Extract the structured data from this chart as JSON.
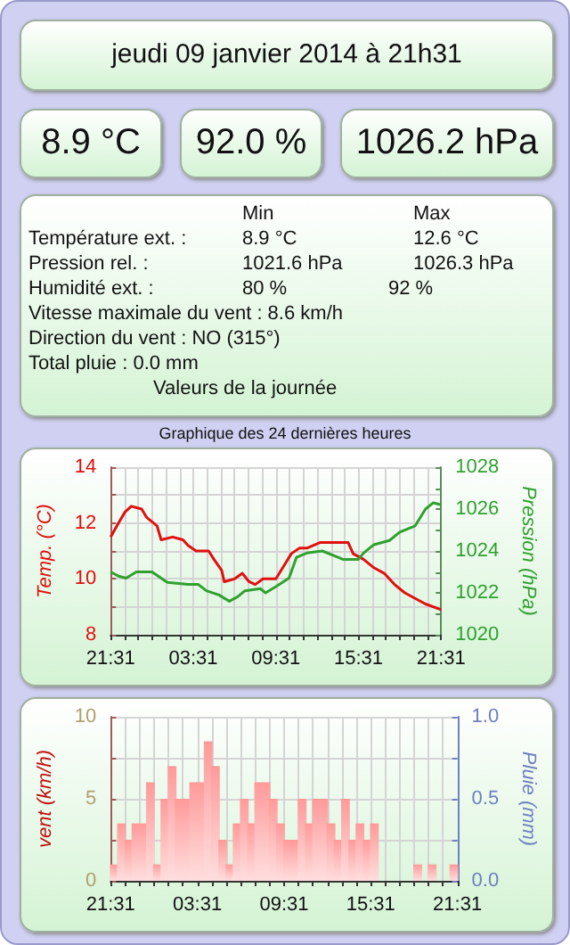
{
  "chart_data": [
    {
      "type": "other",
      "title": "jeudi 09 janvier 2014 à 21h31",
      "annotations": [
        "8.9 °C",
        "92.0 %",
        "1026.2 hPa",
        "Min",
        "Max",
        "Température ext. :",
        "8.9 °C",
        "12.6 °C",
        "Pression rel. :",
        "1021.6 hPa",
        "1026.3 hPa",
        "Humidité ext. :",
        "80 %",
        "92 %",
        "Vitesse maximale du vent : 8.6 km/h",
        "Direction du vent : NO (315°)",
        "Total pluie : 0.0 mm",
        "Valeurs de la journée"
      ]
    },
    {
      "type": "line",
      "title": "Graphique des 24 dernières heures",
      "ylabel": "Temp. (°C)",
      "y2label": "Pression (hPa)",
      "series": [
        {
          "color": "#e01010",
          "x": [
            "2014-01-08T21:31",
            "2014-01-08T22:05",
            "2014-01-08T22:34",
            "2014-01-08T23:01",
            "2014-01-08T23:46",
            "2014-01-09T00:08",
            "2014-01-09T00:53",
            "2014-01-09T01:11",
            "2014-01-09T02:01",
            "2014-01-09T02:46",
            "2014-01-09T03:08",
            "2014-01-09T03:43",
            "2014-01-09T04:38",
            "2014-01-09T05:01",
            "2014-01-09T05:35",
            "2014-01-09T05:46",
            "2014-01-09T06:31",
            "2014-01-09T07:05",
            "2014-01-09T07:34",
            "2014-01-09T08:01",
            "2014-01-09T08:35",
            "2014-01-09T09:31",
            "2014-01-09T10:16",
            "2014-01-09T10:38",
            "2014-01-09T11:13",
            "2014-01-09T11:46",
            "2014-01-09T12:43",
            "2014-01-09T14:46",
            "2014-01-09T15:08",
            "2014-01-09T15:53",
            "2014-01-09T16:38",
            "2014-01-09T17:23",
            "2014-01-09T18:08",
            "2014-01-09T18:53",
            "2014-01-09T19:38",
            "2014-01-09T20:23",
            "2014-01-09T21:31"
          ],
          "values": [
            11.5,
            12.0,
            12.4,
            12.6,
            12.5,
            12.2,
            11.9,
            11.4,
            11.5,
            11.4,
            11.2,
            11.0,
            11.0,
            10.7,
            10.3,
            9.9,
            10.0,
            10.2,
            9.9,
            9.8,
            10.0,
            10.0,
            10.6,
            10.9,
            11.1,
            11.1,
            11.3,
            11.3,
            10.9,
            10.7,
            10.4,
            10.2,
            9.8,
            9.5,
            9.3,
            9.1,
            8.9
          ]
        },
        {
          "color": "#30a030",
          "axis": "y2",
          "x": [
            "2014-01-08T21:31",
            "2014-01-08T22:05",
            "2014-01-08T22:38",
            "2014-01-08T23:23",
            "2014-01-09T00:31",
            "2014-01-09T01:38",
            "2014-01-09T03:08",
            "2014-01-09T03:53",
            "2014-01-09T04:28",
            "2014-01-09T05:23",
            "2014-01-09T06:08",
            "2014-01-09T06:43",
            "2014-01-09T07:16",
            "2014-01-09T08:23",
            "2014-01-09T08:46",
            "2014-01-09T09:31",
            "2014-01-09T10:28",
            "2014-01-09T11:01",
            "2014-01-09T11:46",
            "2014-01-09T12:53",
            "2014-01-09T13:38",
            "2014-01-09T14:23",
            "2014-01-09T15:31",
            "2014-01-09T15:53",
            "2014-01-09T16:38",
            "2014-01-09T17:46",
            "2014-01-09T18:31",
            "2014-01-09T19:38",
            "2014-01-09T20:23",
            "2014-01-09T20:57",
            "2014-01-09T21:31"
          ],
          "values": [
            1023.0,
            1022.8,
            1022.7,
            1023.0,
            1023.0,
            1022.5,
            1022.4,
            1022.4,
            1022.1,
            1021.9,
            1021.6,
            1021.8,
            1022.1,
            1022.2,
            1022.0,
            1022.3,
            1022.7,
            1023.7,
            1023.9,
            1024.0,
            1023.8,
            1023.6,
            1023.6,
            1023.9,
            1024.3,
            1024.5,
            1024.9,
            1025.2,
            1026.0,
            1026.3,
            1026.2
          ]
        }
      ],
      "xlim": [
        "2014-01-08T21:31",
        "2014-01-09T21:31"
      ],
      "xticks": [
        {
          "value": "2014-01-08T21:31",
          "label": "21:31"
        },
        {
          "value": "2014-01-08T22:31",
          "label": null
        },
        {
          "value": "2014-01-08T23:31",
          "label": null
        },
        {
          "value": "2014-01-09T00:31",
          "label": null
        },
        {
          "value": "2014-01-09T01:31",
          "label": null
        },
        {
          "value": "2014-01-09T02:31",
          "label": null
        },
        {
          "value": "2014-01-09T03:31",
          "label": "03:31"
        },
        {
          "value": "2014-01-09T04:31",
          "label": null
        },
        {
          "value": "2014-01-09T05:31",
          "label": null
        },
        {
          "value": "2014-01-09T06:31",
          "label": null
        },
        {
          "value": "2014-01-09T07:31",
          "label": null
        },
        {
          "value": "2014-01-09T08:31",
          "label": null
        },
        {
          "value": "2014-01-09T09:31",
          "label": "09:31"
        },
        {
          "value": "2014-01-09T10:31",
          "label": null
        },
        {
          "value": "2014-01-09T11:31",
          "label": null
        },
        {
          "value": "2014-01-09T12:31",
          "label": null
        },
        {
          "value": "2014-01-09T13:31",
          "label": null
        },
        {
          "value": "2014-01-09T14:31",
          "label": null
        },
        {
          "value": "2014-01-09T15:31",
          "label": "15:31"
        },
        {
          "value": "2014-01-09T16:31",
          "label": null
        },
        {
          "value": "2014-01-09T17:31",
          "label": null
        },
        {
          "value": "2014-01-09T18:31",
          "label": null
        },
        {
          "value": "2014-01-09T19:31",
          "label": null
        },
        {
          "value": "2014-01-09T20:31",
          "label": null
        },
        {
          "value": "2014-01-09T21:31",
          "label": "21:31"
        }
      ],
      "ylim": [
        8,
        14
      ],
      "yticks": [
        8,
        {
          "value": 9,
          "label": null
        },
        10,
        {
          "value": 11,
          "label": null
        },
        12,
        {
          "value": 13,
          "label": null
        },
        14
      ],
      "y2lim": [
        1020,
        1028
      ],
      "y2ticks": [
        1020,
        {
          "value": 1021,
          "label": null
        },
        1022,
        {
          "value": 1023,
          "label": null
        },
        1024,
        {
          "value": 1025,
          "label": null
        },
        1026,
        {
          "value": 1027,
          "label": null
        },
        1028
      ],
      "grid": true,
      "marker": "none",
      "line_style": "solid"
    },
    {
      "type": "bar",
      "ylabel": "vent (km/h)",
      "y2label": "Pluie (mm)",
      "series": [
        {
          "color": "#ff9a9a",
          "x": [
            "2014-01-08T21:46",
            "2014-01-08T22:16",
            "2014-01-08T22:46",
            "2014-01-08T23:16",
            "2014-01-08T23:46",
            "2014-01-09T00:16",
            "2014-01-09T00:46",
            "2014-01-09T01:16",
            "2014-01-09T01:46",
            "2014-01-09T02:16",
            "2014-01-09T02:46",
            "2014-01-09T03:16",
            "2014-01-09T03:46",
            "2014-01-09T04:16",
            "2014-01-09T04:46",
            "2014-01-09T05:16",
            "2014-01-09T05:46",
            "2014-01-09T06:16",
            "2014-01-09T06:46",
            "2014-01-09T07:16",
            "2014-01-09T07:46",
            "2014-01-09T08:16",
            "2014-01-09T08:46",
            "2014-01-09T09:16",
            "2014-01-09T09:46",
            "2014-01-09T10:16",
            "2014-01-09T10:46",
            "2014-01-09T11:16",
            "2014-01-09T11:46",
            "2014-01-09T12:16",
            "2014-01-09T12:46",
            "2014-01-09T13:16",
            "2014-01-09T13:46",
            "2014-01-09T14:16",
            "2014-01-09T14:46",
            "2014-01-09T15:16",
            "2014-01-09T15:46",
            "2014-01-09T16:16",
            "2014-01-09T16:46",
            "2014-01-09T17:16",
            "2014-01-09T17:46",
            "2014-01-09T18:16",
            "2014-01-09T18:46",
            "2014-01-09T19:16",
            "2014-01-09T19:46",
            "2014-01-09T20:16",
            "2014-01-09T20:46",
            "2014-01-09T21:16"
          ],
          "values": [
            1,
            3.5,
            2.5,
            3.5,
            3.5,
            6,
            1,
            5,
            7,
            5,
            5,
            6,
            6,
            8.5,
            7,
            2.5,
            1,
            3.5,
            5,
            3.5,
            6,
            6,
            5,
            3.5,
            2.5,
            2.5,
            5,
            3.5,
            5,
            5,
            3.5,
            2.5,
            5,
            2.5,
            3.5,
            2.5,
            3.5,
            0,
            0,
            0,
            0,
            0,
            1,
            0,
            1,
            0,
            0,
            1
          ]
        }
      ],
      "xlim": [
        "2014-01-08T21:31",
        "2014-01-09T21:31"
      ],
      "xticks": [
        {
          "value": "2014-01-08T21:31",
          "label": "21:31"
        },
        {
          "value": "2014-01-08T22:31",
          "label": null
        },
        {
          "value": "2014-01-08T23:31",
          "label": null
        },
        {
          "value": "2014-01-09T00:31",
          "label": null
        },
        {
          "value": "2014-01-09T01:31",
          "label": null
        },
        {
          "value": "2014-01-09T02:31",
          "label": null
        },
        {
          "value": "2014-01-09T03:31",
          "label": "03:31"
        },
        {
          "value": "2014-01-09T04:31",
          "label": null
        },
        {
          "value": "2014-01-09T05:31",
          "label": null
        },
        {
          "value": "2014-01-09T06:31",
          "label": null
        },
        {
          "value": "2014-01-09T07:31",
          "label": null
        },
        {
          "value": "2014-01-09T08:31",
          "label": null
        },
        {
          "value": "2014-01-09T09:31",
          "label": "09:31"
        },
        {
          "value": "2014-01-09T10:31",
          "label": null
        },
        {
          "value": "2014-01-09T11:31",
          "label": null
        },
        {
          "value": "2014-01-09T12:31",
          "label": null
        },
        {
          "value": "2014-01-09T13:31",
          "label": null
        },
        {
          "value": "2014-01-09T14:31",
          "label": null
        },
        {
          "value": "2014-01-09T15:31",
          "label": "15:31"
        },
        {
          "value": "2014-01-09T16:31",
          "label": null
        },
        {
          "value": "2014-01-09T17:31",
          "label": null
        },
        {
          "value": "2014-01-09T18:31",
          "label": null
        },
        {
          "value": "2014-01-09T19:31",
          "label": null
        },
        {
          "value": "2014-01-09T20:31",
          "label": null
        },
        {
          "value": "2014-01-09T21:31",
          "label": "21:31"
        }
      ],
      "ylim": [
        0,
        10
      ],
      "yticks": [
        0,
        {
          "value": 2.5,
          "label": null
        },
        5,
        {
          "value": 7.5,
          "label": null
        },
        10
      ],
      "y2lim": [
        0,
        1
      ],
      "y2ticks": [
        {
          "value": 0,
          "label": "0.0"
        },
        {
          "value": 0.25,
          "label": null
        },
        {
          "value": 0.5,
          "label": "0.5"
        },
        {
          "value": 0.75,
          "label": null
        },
        {
          "value": 1,
          "label": "1.0"
        }
      ],
      "grid": true
    }
  ]
}
